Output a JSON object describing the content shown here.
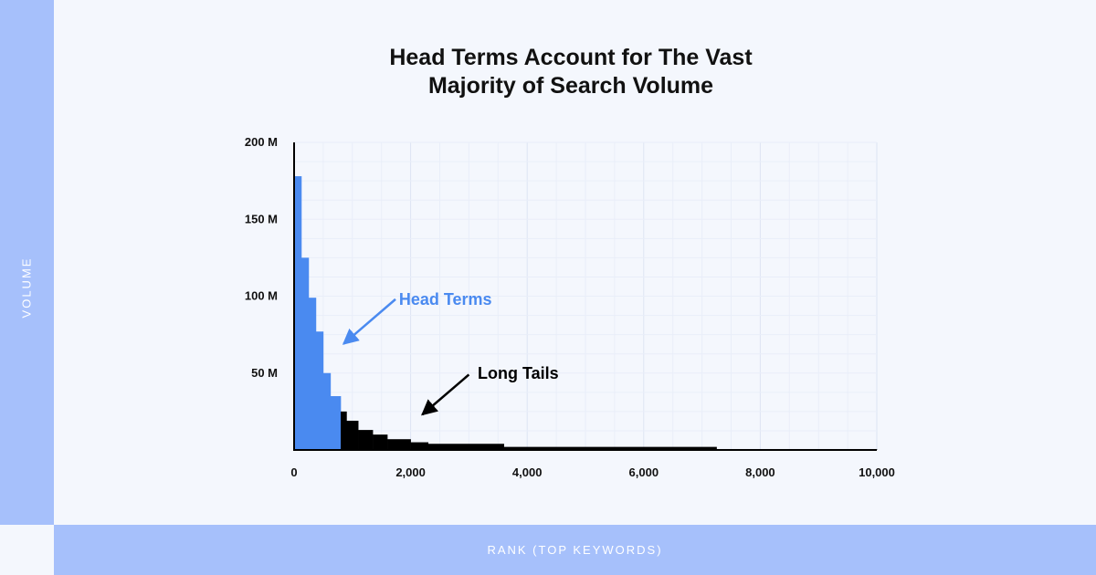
{
  "chart_data": {
    "type": "bar",
    "title_lines": [
      "Head Terms Account for The Vast",
      "Majority of Search Volume"
    ],
    "xlabel": "RANK (TOP KEYWORDS)",
    "ylabel": "VOLUME",
    "xlim": [
      0,
      10000
    ],
    "ylim": [
      0,
      200
    ],
    "x_ticks": [
      {
        "value": 0,
        "label": "0"
      },
      {
        "value": 2000,
        "label": "2,000"
      },
      {
        "value": 4000,
        "label": "4,000"
      },
      {
        "value": 6000,
        "label": "6,000"
      },
      {
        "value": 8000,
        "label": "8,000"
      },
      {
        "value": 10000,
        "label": "10,000"
      }
    ],
    "y_ticks": [
      {
        "value": 50,
        "label": "50 M"
      },
      {
        "value": 100,
        "label": "100 M"
      },
      {
        "value": 150,
        "label": "150 M"
      },
      {
        "value": 200,
        "label": "200 M"
      }
    ],
    "grid": true,
    "series": [
      {
        "name": "Head Terms",
        "color": "#4a8af0",
        "bins": [
          {
            "x0": 0,
            "x1": 125,
            "value": 178
          },
          {
            "x0": 125,
            "x1": 250,
            "value": 125
          },
          {
            "x0": 250,
            "x1": 375,
            "value": 99
          },
          {
            "x0": 375,
            "x1": 500,
            "value": 77
          },
          {
            "x0": 500,
            "x1": 625,
            "value": 50
          },
          {
            "x0": 625,
            "x1": 800,
            "value": 35
          }
        ]
      },
      {
        "name": "Long Tails",
        "color": "#000000",
        "bins": [
          {
            "x0": 800,
            "x1": 900,
            "value": 25
          },
          {
            "x0": 900,
            "x1": 1100,
            "value": 19
          },
          {
            "x0": 1100,
            "x1": 1350,
            "value": 13
          },
          {
            "x0": 1350,
            "x1": 1600,
            "value": 10
          },
          {
            "x0": 1600,
            "x1": 2000,
            "value": 7
          },
          {
            "x0": 2000,
            "x1": 2300,
            "value": 5
          },
          {
            "x0": 2300,
            "x1": 3600,
            "value": 4
          },
          {
            "x0": 3600,
            "x1": 7250,
            "value": 2
          },
          {
            "x0": 7250,
            "x1": 10000,
            "value": 0.6
          }
        ]
      }
    ],
    "annotations": [
      {
        "text": "Head Terms",
        "color": "#4a8af0",
        "label_at": [
          1800,
          98
        ],
        "arrow_from": [
          1740,
          98
        ],
        "arrow_to": [
          850,
          69
        ]
      },
      {
        "text": "Long Tails",
        "color": "#000000",
        "label_at": [
          3150,
          50
        ],
        "arrow_from": [
          3000,
          49
        ],
        "arrow_to": [
          2200,
          23
        ]
      }
    ]
  }
}
